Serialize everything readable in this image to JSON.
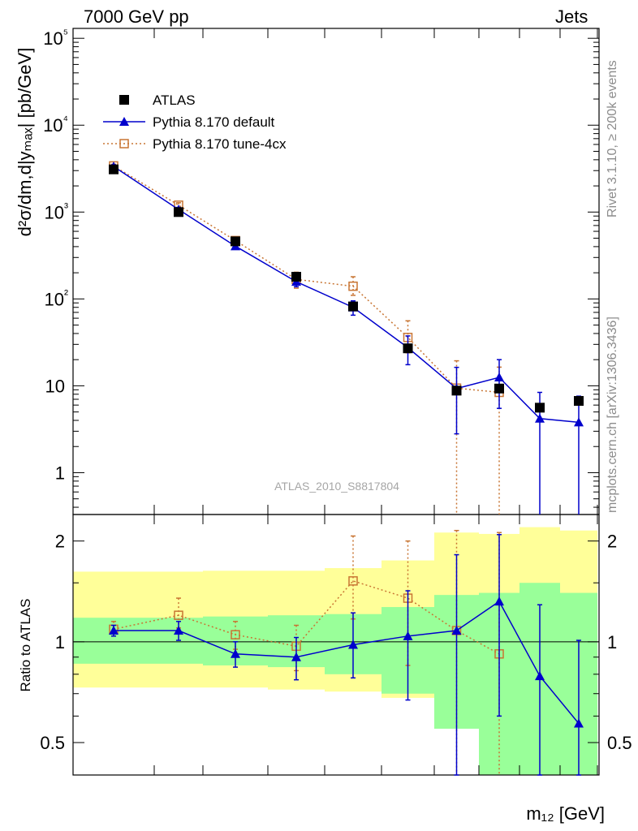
{
  "header": {
    "left": "7000 GeV pp",
    "right": "Jets"
  },
  "side_labels": {
    "rivet": "Rivet 3.1.10, ≥ 200k events",
    "mcplots": "mcplots.cern.ch [arXiv:1306.3436]"
  },
  "watermark": "ATLAS_2010_S8817804",
  "chart_data": [
    {
      "type": "scatter",
      "yscale": "log",
      "ylim": [
        0.33,
        130000
      ],
      "ylabel": "d²σ/dm,d|yₘₐₓ| [pb/GeV]",
      "ytick_labels": [
        "1",
        "10",
        "10²",
        "10³",
        "10⁴",
        "10⁵"
      ],
      "legend_placement": "top-left",
      "bin_edges": [
        90,
        190,
        250,
        330,
        400,
        470,
        535,
        590,
        640,
        690,
        736
      ],
      "series": [
        {
          "name": "ATLAS",
          "color": "#000000",
          "marker": "square",
          "values": [
            3100,
            1000,
            460,
            180,
            82,
            27,
            8.8,
            9.3,
            5.6,
            6.7
          ],
          "err_low": [
            0,
            0,
            0,
            0,
            0,
            0,
            0,
            0,
            0,
            0
          ],
          "err_high": [
            0,
            0,
            0,
            0,
            0,
            0,
            0,
            0,
            0,
            0
          ]
        },
        {
          "name": "Pythia 8.170 default",
          "color": "#0000cc",
          "marker": "triangle",
          "line": "solid",
          "values": [
            3350,
            1070,
            405,
            158,
            80,
            27.5,
            9.3,
            12.5,
            4.2,
            3.8
          ],
          "err_low": [
            150,
            60,
            30,
            20,
            15,
            10,
            6.5,
            7,
            4.2,
            3.8
          ],
          "err_high": [
            150,
            60,
            30,
            20,
            15,
            10,
            7,
            7.5,
            4.2,
            3.8
          ]
        },
        {
          "name": "Pythia 8.170 tune-4cx",
          "color": "#c87533",
          "marker": "open-square",
          "line": "dotted",
          "values": [
            3400,
            1200,
            470,
            168,
            140,
            36,
            9.4,
            8.4,
            null,
            null
          ],
          "err_low": [
            150,
            80,
            40,
            35,
            30,
            12,
            9.4,
            8.4,
            null,
            null
          ],
          "err_high": [
            150,
            80,
            40,
            35,
            40,
            20,
            10,
            8,
            null,
            null
          ]
        }
      ]
    },
    {
      "type": "line",
      "ylabel": "Ratio to ATLAS",
      "yscale": "log",
      "ylim": [
        0.4,
        2.4
      ],
      "ytick_labels": [
        "0.5",
        "1",
        "2"
      ],
      "xlabel": "m₁₂ [GeV]",
      "reference": 1,
      "bands": {
        "yellow": {
          "color": "#ffff99",
          "low": [
            0.73,
            0.73,
            0.73,
            0.72,
            0.71,
            0.68,
            0.6,
            0.35,
            0.35,
            0.35
          ],
          "high": [
            1.62,
            1.62,
            1.63,
            1.63,
            1.66,
            1.75,
            2.12,
            2.1,
            2.2,
            2.15
          ]
        },
        "green": {
          "color": "#99ff99",
          "low": [
            0.86,
            0.86,
            0.85,
            0.84,
            0.8,
            0.7,
            0.55,
            0.35,
            0.35,
            0.35
          ],
          "high": [
            1.18,
            1.18,
            1.19,
            1.2,
            1.21,
            1.27,
            1.38,
            1.4,
            1.5,
            1.4
          ]
        }
      },
      "series": [
        {
          "name": "Pythia 8.170 default",
          "color": "#0000cc",
          "marker": "triangle",
          "line": "solid",
          "values": [
            1.08,
            1.08,
            0.92,
            0.9,
            0.98,
            1.04,
            1.08,
            1.32,
            0.79,
            0.57
          ],
          "err_low": [
            0.04,
            0.07,
            0.08,
            0.13,
            0.2,
            0.37,
            0.68,
            0.72,
            0.44,
            0.22
          ],
          "err_high": [
            0.04,
            0.07,
            0.08,
            0.13,
            0.24,
            0.38,
            0.74,
            0.77,
            0.5,
            0.44
          ]
        },
        {
          "name": "Pythia 8.170 tune-4cx",
          "color": "#c87533",
          "marker": "open-square",
          "line": "dotted",
          "values": [
            1.09,
            1.2,
            1.05,
            0.97,
            1.52,
            1.35,
            1.08,
            0.92,
            null,
            null
          ],
          "err_low": [
            0.05,
            0.1,
            0.1,
            0.15,
            0.35,
            0.5,
            1.08,
            0.92,
            null,
            null
          ],
          "err_high": [
            0.06,
            0.15,
            0.1,
            0.15,
            0.55,
            0.65,
            1.07,
            1.2,
            null,
            null
          ]
        }
      ]
    }
  ]
}
